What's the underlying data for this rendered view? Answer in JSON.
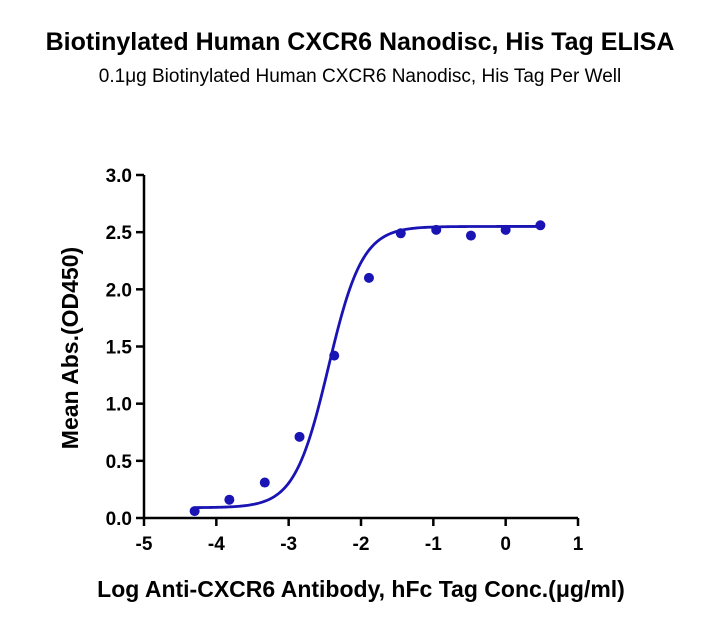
{
  "chart_data": {
    "type": "scatter",
    "title": "Biotinylated Human CXCR6 Nanodisc, His Tag ELISA",
    "subtitle": "0.1μg Biotinylated Human CXCR6 Nanodisc, His Tag Per Well",
    "xlabel": "Log Anti-CXCR6 Antibody, hFc Tag Conc.(μg/ml)",
    "ylabel": "Mean Abs.(OD450)",
    "xlim": [
      -5,
      1
    ],
    "ylim": [
      0,
      3
    ],
    "xticks": [
      -5,
      -4,
      -3,
      -2,
      -1,
      0,
      1
    ],
    "yticks": [
      0.0,
      0.5,
      1.0,
      1.5,
      2.0,
      2.5,
      3.0
    ],
    "xtick_labels": [
      "-5",
      "-4",
      "-3",
      "-2",
      "-1",
      "0",
      "1"
    ],
    "ytick_labels": [
      "0.0",
      "0.5",
      "1.0",
      "1.5",
      "2.0",
      "2.5",
      "3.0"
    ],
    "grid": false,
    "series": [
      {
        "color": "#1a14b4",
        "x": [
          -4.3,
          -3.82,
          -3.33,
          -2.85,
          -2.37,
          -1.89,
          -1.45,
          -0.96,
          -0.48,
          0.0,
          0.48
        ],
        "y": [
          0.06,
          0.16,
          0.31,
          0.71,
          1.42,
          2.1,
          2.49,
          2.52,
          2.47,
          2.52,
          2.56
        ],
        "fit": {
          "bottom": 0.09,
          "top": 2.55,
          "logEC50": -2.45,
          "hill": 1.85
        }
      }
    ]
  }
}
